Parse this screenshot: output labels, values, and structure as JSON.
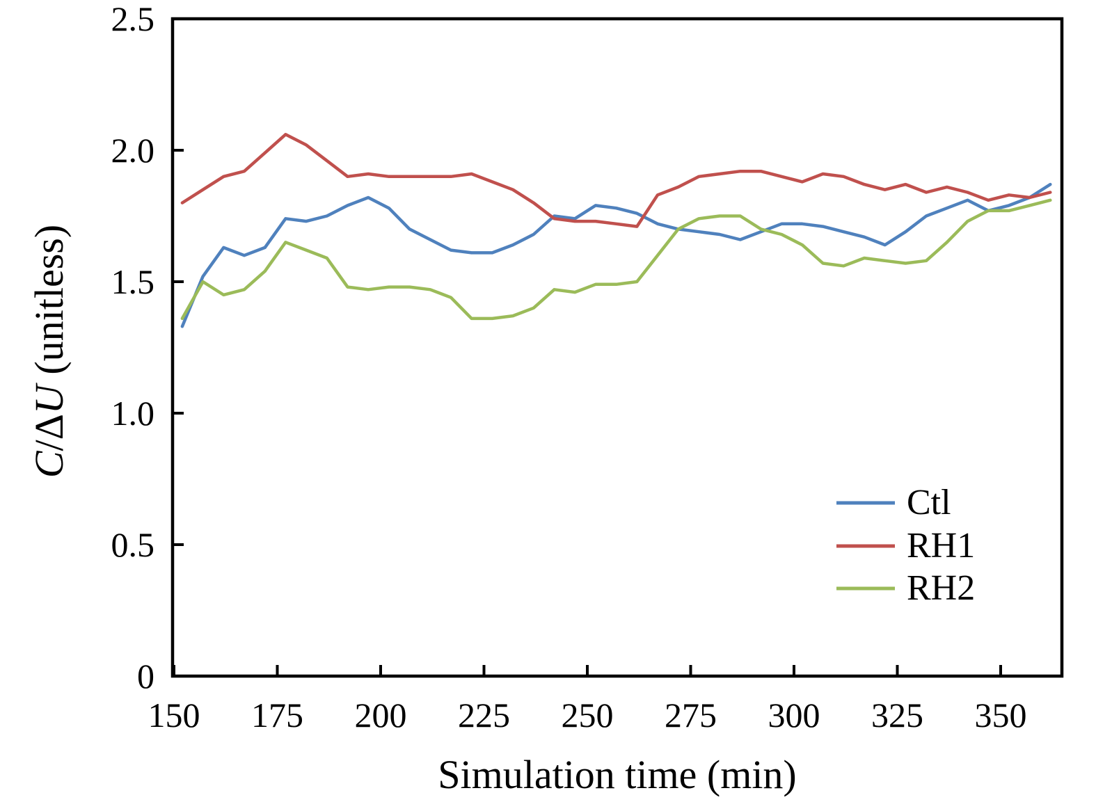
{
  "figure": {
    "background": "#ffffff",
    "axis_color": "#000000"
  },
  "chart_data": {
    "type": "line",
    "title": "",
    "xlabel": "Simulation time (min)",
    "ylabel": "C/ΔU (unitless)",
    "ylabel_parts": {
      "italic1": "C",
      "mid": "/Δ",
      "italic2": "U",
      "rest": " (unitless)"
    },
    "xlim": [
      150,
      365
    ],
    "ylim": [
      0,
      2.5
    ],
    "grid": false,
    "legend_position": "inside-lower-right",
    "x_ticks": [
      150,
      175,
      200,
      225,
      250,
      275,
      300,
      325,
      350
    ],
    "y_ticks": [
      {
        "v": 0,
        "label": "0"
      },
      {
        "v": 0.5,
        "label": "0.5"
      },
      {
        "v": 1,
        "label": "1.0"
      },
      {
        "v": 1.5,
        "label": "1.5"
      },
      {
        "v": 2,
        "label": "2.0"
      },
      {
        "v": 2.5,
        "label": "2.5"
      }
    ],
    "x": [
      152,
      157,
      162,
      167,
      172,
      177,
      182,
      187,
      192,
      197,
      202,
      207,
      212,
      217,
      222,
      227,
      232,
      237,
      242,
      247,
      252,
      257,
      262,
      267,
      272,
      277,
      282,
      287,
      292,
      297,
      302,
      307,
      312,
      317,
      322,
      327,
      332,
      337,
      342,
      347,
      352,
      357,
      362
    ],
    "series": [
      {
        "name": "Ctl",
        "color": "#4F81BD",
        "values": [
          1.33,
          1.52,
          1.63,
          1.6,
          1.63,
          1.74,
          1.73,
          1.75,
          1.79,
          1.82,
          1.78,
          1.7,
          1.66,
          1.62,
          1.61,
          1.61,
          1.64,
          1.68,
          1.75,
          1.74,
          1.79,
          1.78,
          1.76,
          1.72,
          1.7,
          1.69,
          1.68,
          1.66,
          1.69,
          1.72,
          1.72,
          1.71,
          1.69,
          1.67,
          1.64,
          1.69,
          1.75,
          1.78,
          1.81,
          1.77,
          1.79,
          1.82,
          1.87
        ]
      },
      {
        "name": "RH1",
        "color": "#C0504D",
        "values": [
          1.8,
          1.85,
          1.9,
          1.92,
          1.99,
          2.06,
          2.02,
          1.96,
          1.9,
          1.91,
          1.9,
          1.9,
          1.9,
          1.9,
          1.91,
          1.88,
          1.85,
          1.8,
          1.74,
          1.73,
          1.73,
          1.72,
          1.71,
          1.83,
          1.86,
          1.9,
          1.91,
          1.92,
          1.92,
          1.9,
          1.88,
          1.91,
          1.9,
          1.87,
          1.85,
          1.87,
          1.84,
          1.86,
          1.84,
          1.81,
          1.83,
          1.82,
          1.84
        ]
      },
      {
        "name": "RH2",
        "color": "#9BBB59",
        "values": [
          1.36,
          1.5,
          1.45,
          1.47,
          1.54,
          1.65,
          1.62,
          1.59,
          1.48,
          1.47,
          1.48,
          1.48,
          1.47,
          1.44,
          1.36,
          1.36,
          1.37,
          1.4,
          1.47,
          1.46,
          1.49,
          1.49,
          1.5,
          1.6,
          1.7,
          1.74,
          1.75,
          1.75,
          1.7,
          1.68,
          1.64,
          1.57,
          1.56,
          1.59,
          1.58,
          1.57,
          1.58,
          1.65,
          1.73,
          1.77,
          1.77,
          1.79,
          1.81
        ]
      }
    ]
  }
}
